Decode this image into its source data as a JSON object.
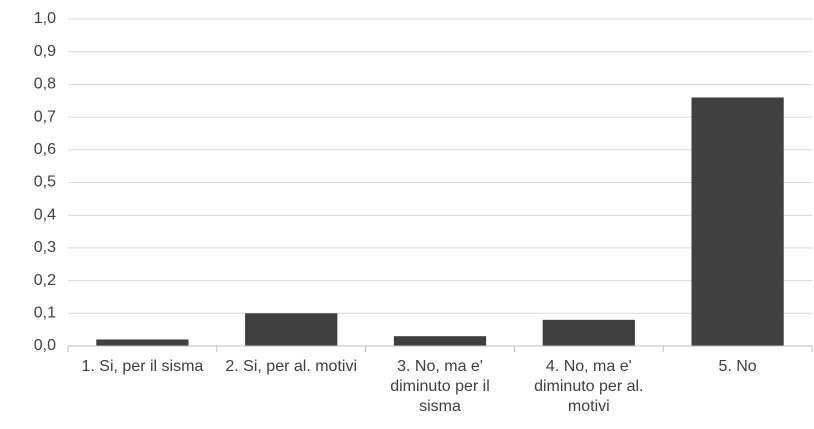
{
  "chart_data": {
    "type": "bar",
    "categories": [
      "1. Si, per il sisma",
      "2. Si, per al. motivi",
      "3. No, ma e' diminuto per il sisma",
      "4. No, ma e' diminuto per al. motivi",
      "5. No"
    ],
    "values": [
      0.02,
      0.1,
      0.03,
      0.08,
      0.76
    ],
    "color": "#404040",
    "ylim": [
      0,
      1.0
    ],
    "yticks": [
      {
        "value": 0,
        "label": "0,0"
      },
      {
        "value": 0.1,
        "label": "0,1"
      },
      {
        "value": 0.2,
        "label": "0,2"
      },
      {
        "value": 0.3,
        "label": "0,3"
      },
      {
        "value": 0.4,
        "label": "0,4"
      },
      {
        "value": 0.5,
        "label": "0,5"
      },
      {
        "value": 0.6,
        "label": "0,6"
      },
      {
        "value": 0.7,
        "label": "0,7"
      },
      {
        "value": 0.8,
        "label": "0,8"
      },
      {
        "value": 0.9,
        "label": "0,9"
      },
      {
        "value": 1.0,
        "label": "1,0"
      }
    ],
    "grid": true
  }
}
